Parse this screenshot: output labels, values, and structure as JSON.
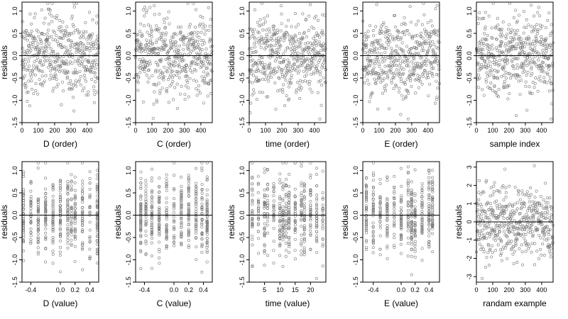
{
  "chart_data": [
    {
      "type": "scatter",
      "xlabel": "D (order)",
      "ylabel": "residuals",
      "xlim": [
        0,
        470
      ],
      "ylim": [
        -1.5,
        1.2
      ],
      "xticks": [
        0,
        100,
        200,
        300,
        400
      ],
      "xtick_labels": [
        "0",
        "100",
        "200",
        "300",
        "400"
      ],
      "yticks": [
        -1.5,
        -1.0,
        -0.5,
        0.0,
        0.5,
        1.0
      ],
      "ytick_labels": [
        "-1.5",
        "-1.0",
        "-0.5",
        "0.0",
        "0.5",
        "1.0"
      ],
      "hline": 0,
      "n_points": 470,
      "x_range": [
        0,
        470
      ],
      "y_center": 0,
      "y_spread": 0.45,
      "grid": false
    },
    {
      "type": "scatter",
      "xlabel": "C (order)",
      "ylabel": "residuals",
      "xlim": [
        0,
        470
      ],
      "ylim": [
        -1.5,
        1.2
      ],
      "xticks": [
        0,
        100,
        200,
        300,
        400
      ],
      "xtick_labels": [
        "0",
        "100",
        "200",
        "300",
        "400"
      ],
      "yticks": [
        -1.5,
        -1.0,
        -0.5,
        0.0,
        0.5,
        1.0
      ],
      "ytick_labels": [
        "-1.5",
        "-1.0",
        "-0.5",
        "0.0",
        "0.5",
        "1.0"
      ],
      "hline": 0,
      "n_points": 470,
      "x_range": [
        0,
        470
      ],
      "y_center": 0,
      "y_spread": 0.45,
      "grid": false
    },
    {
      "type": "scatter",
      "xlabel": "time (order)",
      "ylabel": "residuals",
      "xlim": [
        0,
        470
      ],
      "ylim": [
        -1.5,
        1.2
      ],
      "xticks": [
        0,
        100,
        200,
        300,
        400
      ],
      "xtick_labels": [
        "0",
        "100",
        "200",
        "300",
        "400"
      ],
      "yticks": [
        -1.5,
        -1.0,
        -0.5,
        0.0,
        0.5,
        1.0
      ],
      "ytick_labels": [
        "-1.5",
        "-1.0",
        "-0.5",
        "0.0",
        "0.5",
        "1.0"
      ],
      "hline": 0,
      "n_points": 470,
      "x_range": [
        0,
        470
      ],
      "y_center": 0,
      "y_spread": 0.45,
      "grid": false
    },
    {
      "type": "scatter",
      "xlabel": "E (order)",
      "ylabel": "residuals",
      "xlim": [
        0,
        470
      ],
      "ylim": [
        -1.5,
        1.2
      ],
      "xticks": [
        0,
        100,
        200,
        300,
        400
      ],
      "xtick_labels": [
        "0",
        "100",
        "200",
        "300",
        "400"
      ],
      "yticks": [
        -1.5,
        -1.0,
        -0.5,
        0.0,
        0.5,
        1.0
      ],
      "ytick_labels": [
        "-1.5",
        "-1.0",
        "-0.5",
        "0.0",
        "0.5",
        "1.0"
      ],
      "hline": 0,
      "n_points": 470,
      "x_range": [
        0,
        470
      ],
      "y_center": 0,
      "y_spread": 0.45,
      "grid": false
    },
    {
      "type": "scatter",
      "xlabel": "sample index",
      "ylabel": "residuals",
      "xlim": [
        0,
        470
      ],
      "ylim": [
        -1.5,
        1.2
      ],
      "xticks": [
        0,
        100,
        200,
        300,
        400
      ],
      "xtick_labels": [
        "0",
        "100",
        "200",
        "300",
        "400"
      ],
      "yticks": [
        -1.5,
        -1.0,
        -0.5,
        0.0,
        0.5,
        1.0
      ],
      "ytick_labels": [
        "-1.5",
        "-1.0",
        "-0.5",
        "0.0",
        "0.5",
        "1.0"
      ],
      "hline": 0,
      "n_points": 470,
      "x_range": [
        0,
        470
      ],
      "y_center": 0,
      "y_spread": 0.45,
      "grid": false
    },
    {
      "type": "scatter",
      "xlabel": "D (value)",
      "ylabel": "residuals",
      "xlim": [
        -0.52,
        0.52
      ],
      "ylim": [
        -1.5,
        1.2
      ],
      "xticks": [
        -0.4,
        0.0,
        0.2,
        0.4
      ],
      "xtick_labels": [
        "-0.4",
        "0.0",
        "0.2",
        "0.4"
      ],
      "yticks": [
        -1.5,
        -1.0,
        -0.5,
        0.0,
        0.5,
        1.0
      ],
      "ytick_labels": [
        "-1.5",
        "-1.0",
        "-0.5",
        "0.0",
        "0.5",
        "1.0"
      ],
      "hline": 0,
      "n_points": 470,
      "x_range": [
        -0.5,
        0.5
      ],
      "y_center": 0,
      "y_spread": 0.45,
      "x_levels": [
        -0.5,
        -0.4,
        -0.3,
        -0.2,
        -0.1,
        0.0,
        0.1,
        0.15,
        0.2,
        0.3,
        0.4,
        0.5
      ],
      "grid": false
    },
    {
      "type": "scatter",
      "xlabel": "C (value)",
      "ylabel": "residuals",
      "xlim": [
        -0.52,
        0.52
      ],
      "ylim": [
        -1.5,
        1.2
      ],
      "xticks": [
        -0.4,
        0.0,
        0.2,
        0.4
      ],
      "xtick_labels": [
        "-0.4",
        "0.0",
        "0.2",
        "0.4"
      ],
      "yticks": [
        -1.5,
        -1.0,
        -0.5,
        0.0,
        0.5,
        1.0
      ],
      "ytick_labels": [
        "-1.5",
        "-1.0",
        "-0.5",
        "0.0",
        "0.5",
        "1.0"
      ],
      "hline": 0,
      "n_points": 470,
      "x_range": [
        -0.5,
        0.5
      ],
      "y_center": 0,
      "y_spread": 0.45,
      "x_levels": [
        -0.45,
        -0.38,
        -0.3,
        -0.2,
        -0.1,
        0.0,
        0.1,
        0.2,
        0.3,
        0.38,
        0.45
      ],
      "grid": false
    },
    {
      "type": "scatter",
      "xlabel": "time (value)",
      "ylabel": "residuals",
      "xlim": [
        0,
        25
      ],
      "ylim": [
        -1.5,
        1.2
      ],
      "xticks": [
        5,
        10,
        15,
        20
      ],
      "xtick_labels": [
        "5",
        "10",
        "15",
        "20"
      ],
      "yticks": [
        -1.5,
        -1.0,
        -0.5,
        0.0,
        0.5,
        1.0
      ],
      "ytick_labels": [
        "-1.5",
        "-1.0",
        "-0.5",
        "0.0",
        "0.5",
        "1.0"
      ],
      "hline": 0,
      "n_points": 470,
      "x_range": [
        1,
        24
      ],
      "y_center": 0,
      "y_spread": 0.45,
      "x_levels": [
        1,
        3,
        5,
        6,
        8,
        10,
        11,
        12,
        13,
        15,
        17,
        18,
        20,
        22,
        24
      ],
      "grid": false
    },
    {
      "type": "scatter",
      "xlabel": "E (value)",
      "ylabel": "residuals",
      "xlim": [
        -0.55,
        0.55
      ],
      "ylim": [
        -1.5,
        1.2
      ],
      "xticks": [
        -0.4,
        0.0,
        0.2,
        0.4
      ],
      "xtick_labels": [
        "-0.4",
        "0.0",
        "0.2",
        "0.4"
      ],
      "yticks": [
        -1.5,
        -1.0,
        -0.5,
        0.0,
        0.5,
        1.0
      ],
      "ytick_labels": [
        "-1.5",
        "-1.0",
        "-0.5",
        "0.0",
        "0.5",
        "1.0"
      ],
      "hline": 0,
      "n_points": 470,
      "x_range": [
        -0.5,
        0.5
      ],
      "y_center": 0,
      "y_spread": 0.45,
      "x_levels": [
        -0.5,
        -0.4,
        -0.3,
        -0.2,
        -0.1,
        0.0,
        0.1,
        0.15,
        0.2,
        0.3,
        0.4,
        0.45
      ],
      "grid": false
    },
    {
      "type": "scatter",
      "xlabel": "randam example",
      "ylabel": "residuals",
      "xlim": [
        0,
        470
      ],
      "ylim": [
        -3.3,
        3.3
      ],
      "xticks": [
        0,
        100,
        200,
        300,
        400
      ],
      "xtick_labels": [
        "0",
        "100",
        "200",
        "300",
        "400"
      ],
      "yticks": [
        -3,
        -2,
        -1,
        0,
        1,
        2,
        3
      ],
      "ytick_labels": [
        "-3",
        "-2",
        "-1",
        "0",
        "1",
        "2",
        "3"
      ],
      "hline": 0,
      "n_points": 470,
      "x_range": [
        0,
        470
      ],
      "y_center": 0,
      "y_spread": 1.0,
      "grid": false
    }
  ],
  "style": {
    "point_color": "#7a7a7a",
    "line_color": "#000000",
    "frame_color": "#000000",
    "background": "#ffffff"
  }
}
